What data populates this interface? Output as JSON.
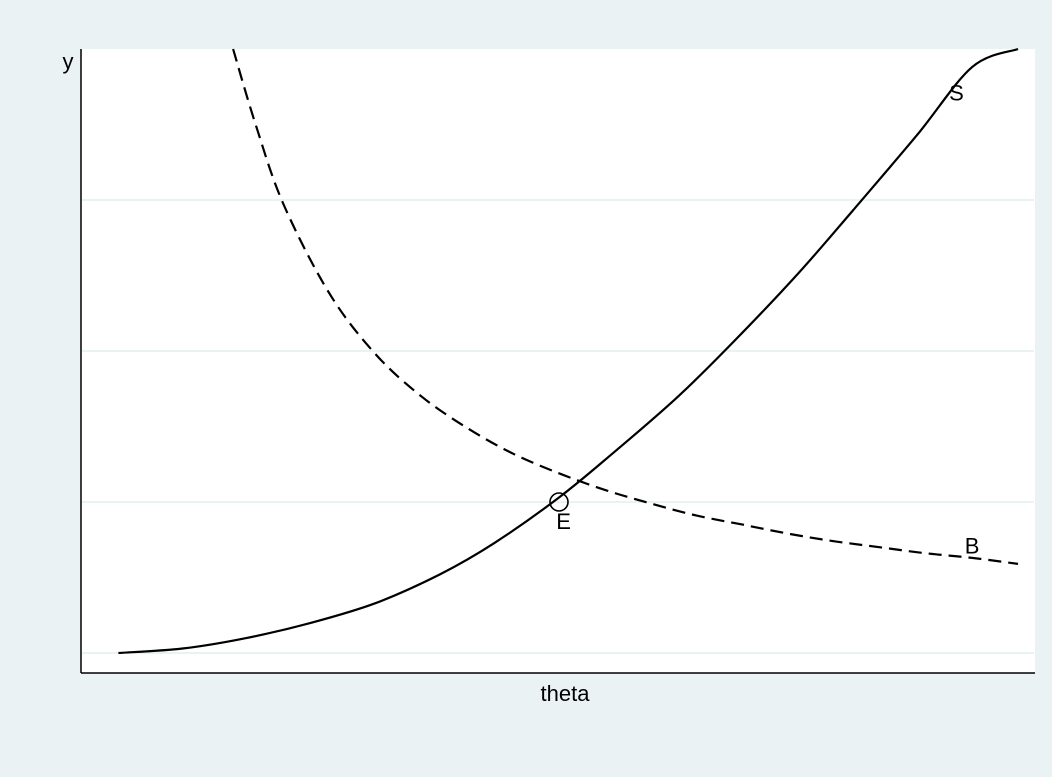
{
  "chart_data": {
    "type": "line",
    "xlabel": "theta",
    "ylabel": "y",
    "grid": true,
    "legend": "none",
    "xlim": [
      0,
      10
    ],
    "ylim": [
      0,
      4.3
    ],
    "series": [
      {
        "name": "S",
        "style": "solid",
        "color": "#000000",
        "x": [
          0.2,
          0.9,
          1.6,
          2.3,
          3.0,
          3.7,
          4.3,
          5.0,
          5.6,
          6.3,
          6.9,
          7.6,
          8.2,
          8.9,
          9.5,
          10.0
        ],
        "y": [
          0.0,
          0.03,
          0.1,
          0.2,
          0.33,
          0.52,
          0.73,
          1.03,
          1.33,
          1.7,
          2.06,
          2.51,
          2.93,
          3.43,
          3.88,
          4.0
        ]
      },
      {
        "name": "B",
        "style": "dashed",
        "color": "#000000",
        "x": [
          1.45,
          1.7,
          2.0,
          2.5,
          3.0,
          3.5,
          4.0,
          4.5,
          5.0,
          5.5,
          6.0,
          6.5,
          7.0,
          7.5,
          8.0,
          8.5,
          9.0,
          9.5,
          10.0
        ],
        "y": [
          4.0,
          3.49,
          2.97,
          2.38,
          1.98,
          1.7,
          1.49,
          1.32,
          1.19,
          1.08,
          0.99,
          0.91,
          0.85,
          0.79,
          0.74,
          0.7,
          0.66,
          0.63,
          0.59
        ]
      }
    ],
    "annotations": [
      {
        "label": "S",
        "x": 9.25,
        "y": 3.66,
        "anchor": "start"
      },
      {
        "label": "B",
        "x": 9.5,
        "y": 0.66,
        "anchor": "middle"
      },
      {
        "label": "E",
        "x": 5.05,
        "y": 0.82,
        "anchor": "middle"
      }
    ],
    "equilibrium": {
      "label": "E",
      "x": 5.0,
      "y": 1.0
    },
    "colors": {
      "background": "#eaf2f3",
      "plot_area": "#ffffff",
      "gridline": "#eaf2f3",
      "line": "#000000"
    }
  }
}
